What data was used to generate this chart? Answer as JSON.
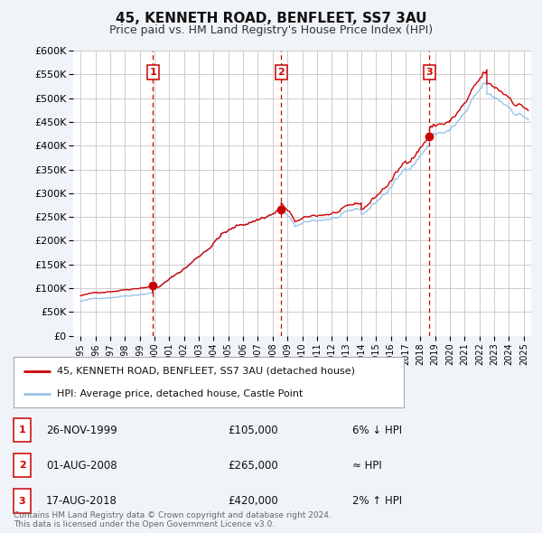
{
  "title": "45, KENNETH ROAD, BENFLEET, SS7 3AU",
  "subtitle": "Price paid vs. HM Land Registry's House Price Index (HPI)",
  "background_color": "#f0f4f8",
  "plot_bg_color": "#ffffff",
  "grid_color": "#cccccc",
  "ylim": [
    0,
    600000
  ],
  "yticks": [
    0,
    50000,
    100000,
    150000,
    200000,
    250000,
    300000,
    350000,
    400000,
    450000,
    500000,
    550000,
    600000
  ],
  "ytick_labels": [
    "£0",
    "£50K",
    "£100K",
    "£150K",
    "£200K",
    "£250K",
    "£300K",
    "£350K",
    "£400K",
    "£450K",
    "£500K",
    "£550K",
    "£600K"
  ],
  "sale_color": "#cc0000",
  "hpi_color": "#99c4e8",
  "vline_color": "#cc0000",
  "sale_label": "45, KENNETH ROAD, BENFLEET, SS7 3AU (detached house)",
  "hpi_label": "HPI: Average price, detached house, Castle Point",
  "transactions": [
    {
      "num": 1,
      "date": "26-NOV-1999",
      "price": 105000,
      "x": 1999.9,
      "hpi_note": "6% ↓ HPI"
    },
    {
      "num": 2,
      "date": "01-AUG-2008",
      "price": 265000,
      "x": 2008.58,
      "hpi_note": "≈ HPI"
    },
    {
      "num": 3,
      "date": "17-AUG-2018",
      "price": 420000,
      "x": 2018.62,
      "hpi_note": "2% ↑ HPI"
    }
  ],
  "footer_text": "Contains HM Land Registry data © Crown copyright and database right 2024.\nThis data is licensed under the Open Government Licence v3.0.",
  "xlim_start": 1994.5,
  "xlim_end": 2025.5
}
